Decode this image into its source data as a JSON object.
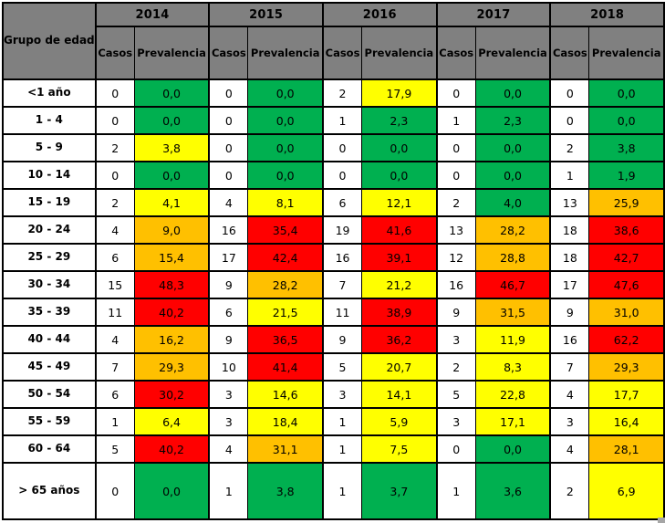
{
  "chart_data": {
    "type": "table",
    "corner_header": "Grupo de edad",
    "col_groups": [
      "2014",
      "2015",
      "2016",
      "2017",
      "2018"
    ],
    "sub_columns": [
      "Casos",
      "Prevalencia"
    ],
    "color_scale": {
      "green": "#00B050",
      "yellow": "#FFFF00",
      "orange": "#FFC000",
      "red": "#FF0000"
    },
    "header_bg": "#808080",
    "rows": [
      {
        "age": "<1 año",
        "values": [
          {
            "casos": "0",
            "prev": "0,0",
            "level": "green"
          },
          {
            "casos": "0",
            "prev": "0,0",
            "level": "green"
          },
          {
            "casos": "2",
            "prev": "17,9",
            "level": "yellow"
          },
          {
            "casos": "0",
            "prev": "0,0",
            "level": "green"
          },
          {
            "casos": "0",
            "prev": "0,0",
            "level": "green"
          }
        ]
      },
      {
        "age": "1 - 4",
        "values": [
          {
            "casos": "0",
            "prev": "0,0",
            "level": "green"
          },
          {
            "casos": "0",
            "prev": "0,0",
            "level": "green"
          },
          {
            "casos": "1",
            "prev": "2,3",
            "level": "green"
          },
          {
            "casos": "1",
            "prev": "2,3",
            "level": "green"
          },
          {
            "casos": "0",
            "prev": "0,0",
            "level": "green"
          }
        ]
      },
      {
        "age": "5 - 9",
        "values": [
          {
            "casos": "2",
            "prev": "3,8",
            "level": "yellow"
          },
          {
            "casos": "0",
            "prev": "0,0",
            "level": "green"
          },
          {
            "casos": "0",
            "prev": "0,0",
            "level": "green"
          },
          {
            "casos": "0",
            "prev": "0,0",
            "level": "green"
          },
          {
            "casos": "2",
            "prev": "3,8",
            "level": "green"
          }
        ]
      },
      {
        "age": "10 - 14",
        "values": [
          {
            "casos": "0",
            "prev": "0,0",
            "level": "green"
          },
          {
            "casos": "0",
            "prev": "0,0",
            "level": "green"
          },
          {
            "casos": "0",
            "prev": "0,0",
            "level": "green"
          },
          {
            "casos": "0",
            "prev": "0,0",
            "level": "green"
          },
          {
            "casos": "1",
            "prev": "1,9",
            "level": "green"
          }
        ]
      },
      {
        "age": "15 - 19",
        "values": [
          {
            "casos": "2",
            "prev": "4,1",
            "level": "yellow"
          },
          {
            "casos": "4",
            "prev": "8,1",
            "level": "yellow"
          },
          {
            "casos": "6",
            "prev": "12,1",
            "level": "yellow"
          },
          {
            "casos": "2",
            "prev": "4,0",
            "level": "green"
          },
          {
            "casos": "13",
            "prev": "25,9",
            "level": "orange"
          }
        ]
      },
      {
        "age": "20 - 24",
        "values": [
          {
            "casos": "4",
            "prev": "9,0",
            "level": "orange"
          },
          {
            "casos": "16",
            "prev": "35,4",
            "level": "red"
          },
          {
            "casos": "19",
            "prev": "41,6",
            "level": "red"
          },
          {
            "casos": "13",
            "prev": "28,2",
            "level": "orange"
          },
          {
            "casos": "18",
            "prev": "38,6",
            "level": "red"
          }
        ]
      },
      {
        "age": "25 - 29",
        "values": [
          {
            "casos": "6",
            "prev": "15,4",
            "level": "orange"
          },
          {
            "casos": "17",
            "prev": "42,4",
            "level": "red"
          },
          {
            "casos": "16",
            "prev": "39,1",
            "level": "red"
          },
          {
            "casos": "12",
            "prev": "28,8",
            "level": "orange"
          },
          {
            "casos": "18",
            "prev": "42,7",
            "level": "red"
          }
        ]
      },
      {
        "age": "30 - 34",
        "values": [
          {
            "casos": "15",
            "prev": "48,3",
            "level": "red"
          },
          {
            "casos": "9",
            "prev": "28,2",
            "level": "orange"
          },
          {
            "casos": "7",
            "prev": "21,2",
            "level": "yellow"
          },
          {
            "casos": "16",
            "prev": "46,7",
            "level": "red"
          },
          {
            "casos": "17",
            "prev": "47,6",
            "level": "red"
          }
        ]
      },
      {
        "age": "35 - 39",
        "values": [
          {
            "casos": "11",
            "prev": "40,2",
            "level": "red"
          },
          {
            "casos": "6",
            "prev": "21,5",
            "level": "yellow"
          },
          {
            "casos": "11",
            "prev": "38,9",
            "level": "red"
          },
          {
            "casos": "9",
            "prev": "31,5",
            "level": "orange"
          },
          {
            "casos": "9",
            "prev": "31,0",
            "level": "orange"
          }
        ]
      },
      {
        "age": "40 - 44",
        "values": [
          {
            "casos": "4",
            "prev": "16,2",
            "level": "orange"
          },
          {
            "casos": "9",
            "prev": "36,5",
            "level": "red"
          },
          {
            "casos": "9",
            "prev": "36,2",
            "level": "red"
          },
          {
            "casos": "3",
            "prev": "11,9",
            "level": "yellow"
          },
          {
            "casos": "16",
            "prev": "62,2",
            "level": "red"
          }
        ]
      },
      {
        "age": "45 - 49",
        "values": [
          {
            "casos": "7",
            "prev": "29,3",
            "level": "orange"
          },
          {
            "casos": "10",
            "prev": "41,4",
            "level": "red"
          },
          {
            "casos": "5",
            "prev": "20,7",
            "level": "yellow"
          },
          {
            "casos": "2",
            "prev": "8,3",
            "level": "yellow"
          },
          {
            "casos": "7",
            "prev": "29,3",
            "level": "orange"
          }
        ]
      },
      {
        "age": "50 - 54",
        "values": [
          {
            "casos": "6",
            "prev": "30,2",
            "level": "red"
          },
          {
            "casos": "3",
            "prev": "14,6",
            "level": "yellow"
          },
          {
            "casos": "3",
            "prev": "14,1",
            "level": "yellow"
          },
          {
            "casos": "5",
            "prev": "22,8",
            "level": "yellow"
          },
          {
            "casos": "4",
            "prev": "17,7",
            "level": "yellow"
          }
        ]
      },
      {
        "age": "55 - 59",
        "values": [
          {
            "casos": "1",
            "prev": "6,4",
            "level": "yellow"
          },
          {
            "casos": "3",
            "prev": "18,4",
            "level": "yellow"
          },
          {
            "casos": "1",
            "prev": "5,9",
            "level": "yellow"
          },
          {
            "casos": "3",
            "prev": "17,1",
            "level": "yellow"
          },
          {
            "casos": "3",
            "prev": "16,4",
            "level": "yellow"
          }
        ]
      },
      {
        "age": "60 - 64",
        "values": [
          {
            "casos": "5",
            "prev": "40,2",
            "level": "red"
          },
          {
            "casos": "4",
            "prev": "31,1",
            "level": "orange"
          },
          {
            "casos": "1",
            "prev": "7,5",
            "level": "yellow"
          },
          {
            "casos": "0",
            "prev": "0,0",
            "level": "green"
          },
          {
            "casos": "4",
            "prev": "28,1",
            "level": "orange"
          }
        ]
      },
      {
        "age": "> 65 años",
        "values": [
          {
            "casos": "0",
            "prev": "0,0",
            "level": "green"
          },
          {
            "casos": "1",
            "prev": "3,8",
            "level": "green"
          },
          {
            "casos": "1",
            "prev": "3,7",
            "level": "green"
          },
          {
            "casos": "1",
            "prev": "3,6",
            "level": "green"
          },
          {
            "casos": "2",
            "prev": "6,9",
            "level": "yellow"
          }
        ]
      }
    ]
  }
}
